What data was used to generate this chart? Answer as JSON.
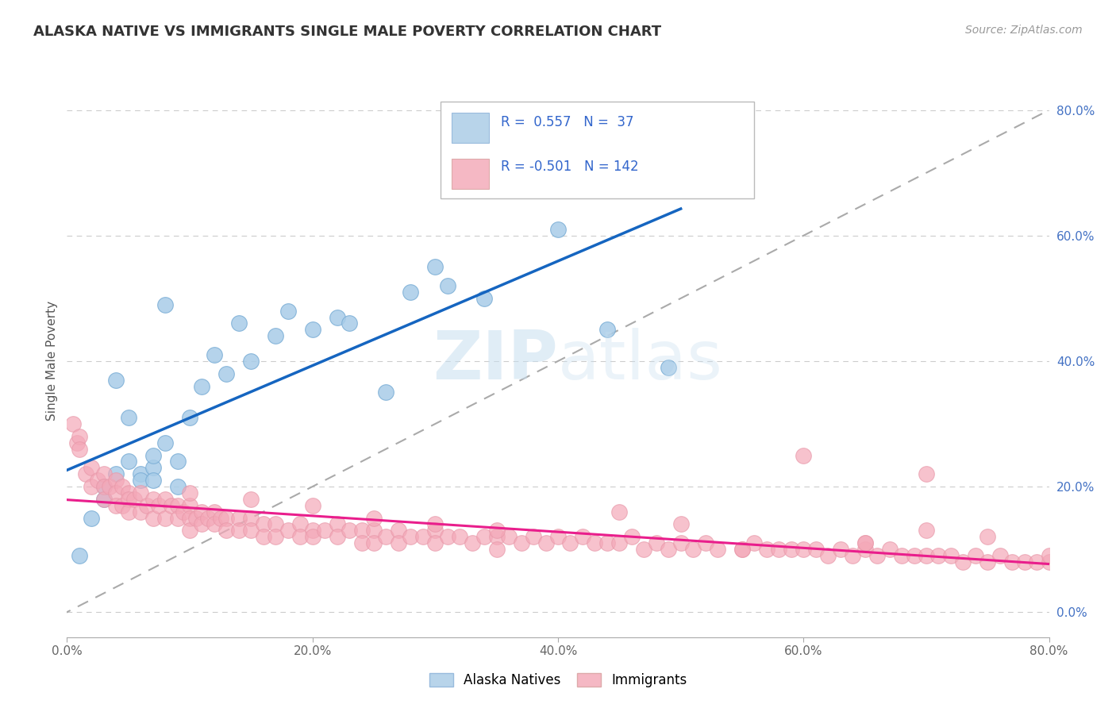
{
  "title": "ALASKA NATIVE VS IMMIGRANTS SINGLE MALE POVERTY CORRELATION CHART",
  "source": "Source: ZipAtlas.com",
  "ylabel": "Single Male Poverty",
  "xmin": 0.0,
  "xmax": 0.8,
  "ymin": -0.04,
  "ymax": 0.84,
  "right_yticks": [
    0.0,
    0.2,
    0.4,
    0.6,
    0.8
  ],
  "right_yticklabels": [
    "0.0%",
    "20.0%",
    "40.0%",
    "60.0%",
    "80.0%"
  ],
  "xticks": [
    0.0,
    0.2,
    0.4,
    0.6,
    0.8
  ],
  "xticklabels": [
    "0.0%",
    "20.0%",
    "40.0%",
    "60.0%",
    "80.0%"
  ],
  "blue_scatter_color": "#a8cce8",
  "pink_scatter_color": "#f4a8b8",
  "blue_line_color": "#1565c0",
  "pink_line_color": "#e91e8c",
  "ref_line_color": "#aaaaaa",
  "grid_color": "#cccccc",
  "background_color": "#ffffff",
  "legend_blue_fill": "#b8d4ea",
  "legend_pink_fill": "#f5b8c4",
  "alaska_x": [
    0.01,
    0.02,
    0.03,
    0.03,
    0.04,
    0.04,
    0.05,
    0.05,
    0.06,
    0.06,
    0.07,
    0.07,
    0.07,
    0.08,
    0.08,
    0.09,
    0.09,
    0.1,
    0.11,
    0.12,
    0.13,
    0.14,
    0.15,
    0.17,
    0.18,
    0.2,
    0.22,
    0.23,
    0.26,
    0.28,
    0.3,
    0.31,
    0.34,
    0.36,
    0.4,
    0.44,
    0.49
  ],
  "alaska_y": [
    0.09,
    0.15,
    0.18,
    0.2,
    0.22,
    0.37,
    0.24,
    0.31,
    0.22,
    0.21,
    0.23,
    0.25,
    0.21,
    0.27,
    0.49,
    0.24,
    0.2,
    0.31,
    0.36,
    0.41,
    0.38,
    0.46,
    0.4,
    0.44,
    0.48,
    0.45,
    0.47,
    0.46,
    0.35,
    0.51,
    0.55,
    0.52,
    0.5,
    0.68,
    0.61,
    0.45,
    0.39
  ],
  "immigrants_x": [
    0.005,
    0.008,
    0.01,
    0.01,
    0.015,
    0.02,
    0.02,
    0.025,
    0.03,
    0.03,
    0.03,
    0.035,
    0.04,
    0.04,
    0.04,
    0.045,
    0.045,
    0.05,
    0.05,
    0.05,
    0.055,
    0.06,
    0.06,
    0.065,
    0.07,
    0.07,
    0.075,
    0.08,
    0.08,
    0.085,
    0.09,
    0.09,
    0.095,
    0.1,
    0.1,
    0.1,
    0.105,
    0.11,
    0.11,
    0.115,
    0.12,
    0.12,
    0.125,
    0.13,
    0.13,
    0.14,
    0.14,
    0.15,
    0.15,
    0.16,
    0.16,
    0.17,
    0.17,
    0.18,
    0.19,
    0.19,
    0.2,
    0.2,
    0.21,
    0.22,
    0.22,
    0.23,
    0.24,
    0.24,
    0.25,
    0.25,
    0.26,
    0.27,
    0.27,
    0.28,
    0.29,
    0.3,
    0.3,
    0.31,
    0.32,
    0.33,
    0.34,
    0.35,
    0.35,
    0.36,
    0.37,
    0.38,
    0.39,
    0.4,
    0.41,
    0.42,
    0.43,
    0.44,
    0.45,
    0.46,
    0.47,
    0.48,
    0.49,
    0.5,
    0.51,
    0.52,
    0.53,
    0.55,
    0.56,
    0.57,
    0.58,
    0.59,
    0.6,
    0.61,
    0.62,
    0.63,
    0.64,
    0.65,
    0.66,
    0.67,
    0.68,
    0.69,
    0.7,
    0.71,
    0.72,
    0.73,
    0.74,
    0.75,
    0.76,
    0.77,
    0.78,
    0.79,
    0.8,
    0.6,
    0.65,
    0.7,
    0.55,
    0.5,
    0.45,
    0.35,
    0.3,
    0.25,
    0.2,
    0.15,
    0.1,
    0.7,
    0.75,
    0.65,
    0.8
  ],
  "immigrants_y": [
    0.3,
    0.27,
    0.28,
    0.26,
    0.22,
    0.23,
    0.2,
    0.21,
    0.22,
    0.2,
    0.18,
    0.2,
    0.21,
    0.19,
    0.17,
    0.2,
    0.17,
    0.19,
    0.18,
    0.16,
    0.18,
    0.19,
    0.16,
    0.17,
    0.18,
    0.15,
    0.17,
    0.18,
    0.15,
    0.17,
    0.17,
    0.15,
    0.16,
    0.17,
    0.15,
    0.13,
    0.15,
    0.16,
    0.14,
    0.15,
    0.16,
    0.14,
    0.15,
    0.15,
    0.13,
    0.15,
    0.13,
    0.15,
    0.13,
    0.14,
    0.12,
    0.14,
    0.12,
    0.13,
    0.14,
    0.12,
    0.13,
    0.12,
    0.13,
    0.14,
    0.12,
    0.13,
    0.13,
    0.11,
    0.13,
    0.11,
    0.12,
    0.13,
    0.11,
    0.12,
    0.12,
    0.13,
    0.11,
    0.12,
    0.12,
    0.11,
    0.12,
    0.12,
    0.1,
    0.12,
    0.11,
    0.12,
    0.11,
    0.12,
    0.11,
    0.12,
    0.11,
    0.11,
    0.11,
    0.12,
    0.1,
    0.11,
    0.1,
    0.11,
    0.1,
    0.11,
    0.1,
    0.1,
    0.11,
    0.1,
    0.1,
    0.1,
    0.1,
    0.1,
    0.09,
    0.1,
    0.09,
    0.1,
    0.09,
    0.1,
    0.09,
    0.09,
    0.09,
    0.09,
    0.09,
    0.08,
    0.09,
    0.08,
    0.09,
    0.08,
    0.08,
    0.08,
    0.08,
    0.25,
    0.11,
    0.22,
    0.1,
    0.14,
    0.16,
    0.13,
    0.14,
    0.15,
    0.17,
    0.18,
    0.19,
    0.13,
    0.12,
    0.11,
    0.09
  ]
}
